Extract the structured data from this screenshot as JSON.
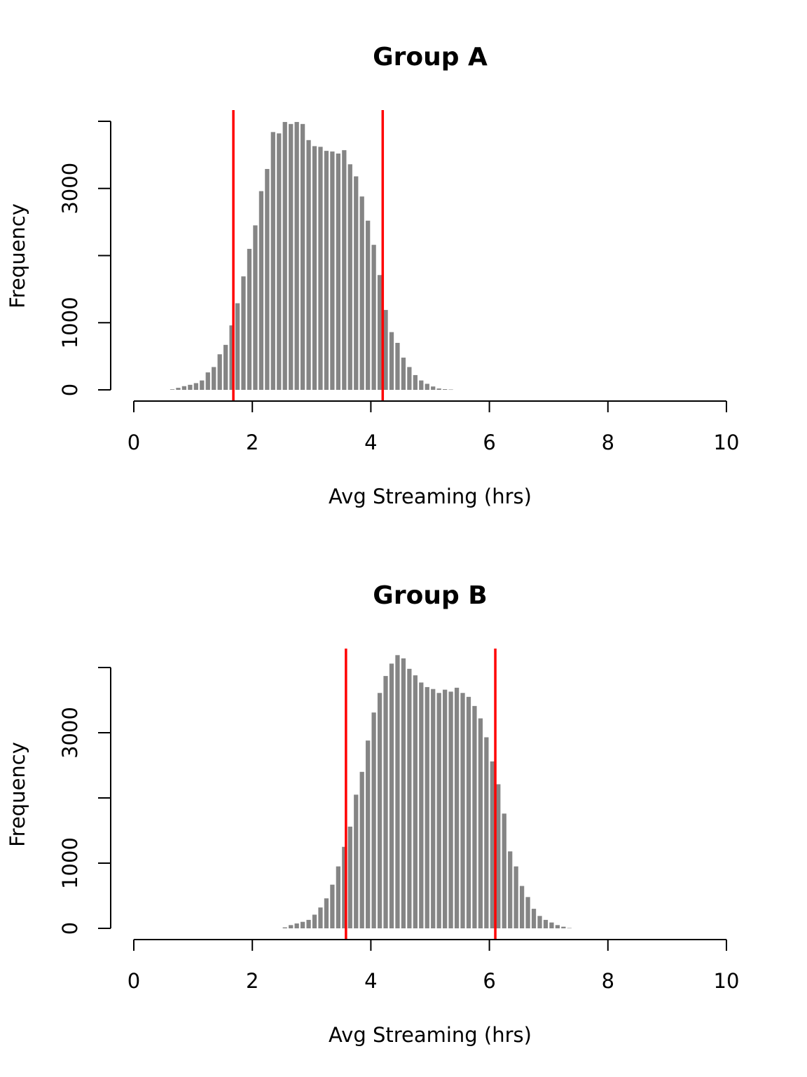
{
  "colors": {
    "bar": "#858585",
    "line": "#ff0000",
    "axis": "#000000"
  },
  "chart_data": [
    {
      "type": "bar",
      "title": "Group A",
      "xlabel": "Avg Streaming (hrs)",
      "ylabel": "Frequency",
      "xlim": [
        0,
        10
      ],
      "ylim": [
        0,
        4000
      ],
      "xticks": [
        "0",
        "2",
        "4",
        "6",
        "8",
        "10"
      ],
      "yticks": [
        "0",
        "1000",
        "3000"
      ],
      "ytick_marks": [
        0,
        1000,
        2000,
        3000,
        4000
      ],
      "bin_start": 0.6,
      "bin_width": 0.1,
      "values": [
        8,
        30,
        55,
        75,
        100,
        140,
        260,
        340,
        530,
        670,
        960,
        1290,
        1690,
        2100,
        2450,
        2960,
        3290,
        3840,
        3820,
        3990,
        3960,
        3990,
        3960,
        3720,
        3630,
        3620,
        3560,
        3550,
        3520,
        3570,
        3360,
        3180,
        2880,
        2520,
        2160,
        1710,
        1190,
        860,
        700,
        480,
        340,
        220,
        140,
        90,
        50,
        20,
        10,
        5
      ],
      "reference_lines": [
        1.68,
        4.2
      ]
    },
    {
      "type": "bar",
      "title": "Group B",
      "xlabel": "Avg Streaming (hrs)",
      "ylabel": "Frequency",
      "xlim": [
        0,
        10
      ],
      "ylim": [
        0,
        4000
      ],
      "xticks": [
        "0",
        "2",
        "4",
        "6",
        "8",
        "10"
      ],
      "yticks": [
        "0",
        "1000",
        "3000"
      ],
      "ytick_marks": [
        0,
        1000,
        2000,
        3000,
        4000
      ],
      "bin_start": 2.5,
      "bin_width": 0.1,
      "values": [
        15,
        50,
        75,
        100,
        130,
        210,
        320,
        460,
        670,
        950,
        1250,
        1560,
        2050,
        2400,
        2880,
        3310,
        3610,
        3870,
        4060,
        4190,
        4140,
        3980,
        3880,
        3770,
        3700,
        3670,
        3610,
        3660,
        3630,
        3690,
        3610,
        3550,
        3410,
        3220,
        2930,
        2560,
        2210,
        1760,
        1180,
        950,
        650,
        480,
        300,
        190,
        130,
        90,
        50,
        25,
        5
      ],
      "reference_lines": [
        3.58,
        6.1
      ]
    }
  ]
}
